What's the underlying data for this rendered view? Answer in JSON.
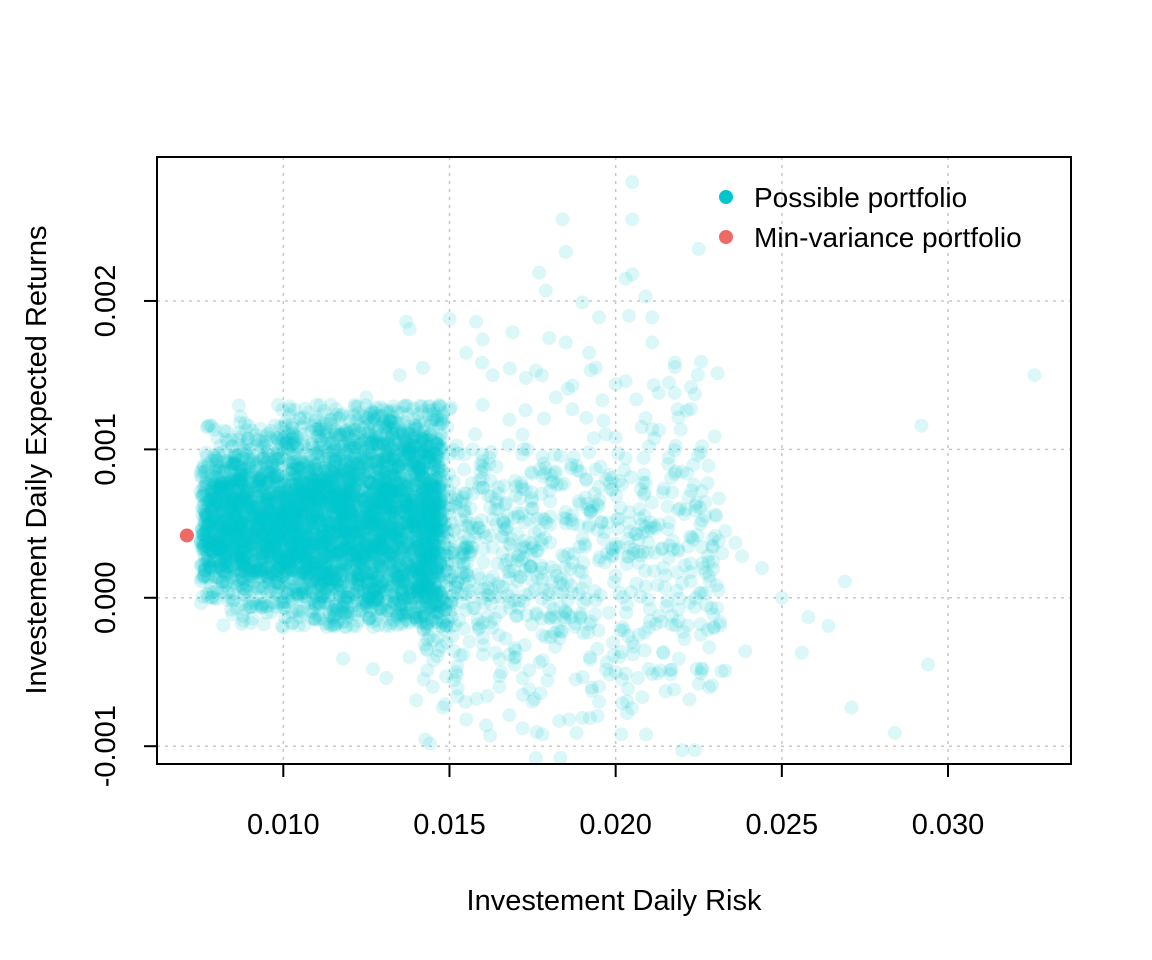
{
  "chart_data": {
    "type": "scatter",
    "title": "",
    "xlabel": "Investement Daily Risk",
    "ylabel": "Investement Daily Expected Returns",
    "xlim": [
      0.0062,
      0.0337
    ],
    "ylim": [
      -0.00112,
      0.00297
    ],
    "x_ticks": [
      0.01,
      0.015,
      0.02,
      0.025,
      0.03
    ],
    "x_tick_labels": [
      "0.010",
      "0.015",
      "0.020",
      "0.025",
      "0.030"
    ],
    "y_ticks": [
      -0.001,
      0.0,
      0.001,
      0.002
    ],
    "y_tick_labels": [
      "-0.001",
      "0.000",
      "0.001",
      "0.002"
    ],
    "grid": true,
    "legend_position": "top-right",
    "series": [
      {
        "name": "Possible portfolio",
        "color": "#00C5CD",
        "opacity": 0.14,
        "dense_core": {
          "x_range": [
            0.0075,
            0.0148
          ],
          "y_range": [
            -0.0002,
            0.0013
          ],
          "center": [
            0.0115,
            0.0005
          ]
        },
        "points": [
          [
            0.0205,
            0.0028
          ],
          [
            0.0184,
            0.00255
          ],
          [
            0.0205,
            0.00255
          ],
          [
            0.0185,
            0.00233
          ],
          [
            0.0225,
            0.00235
          ],
          [
            0.0177,
            0.00219
          ],
          [
            0.0203,
            0.00215
          ],
          [
            0.0205,
            0.00218
          ],
          [
            0.0179,
            0.00207
          ],
          [
            0.0209,
            0.00203
          ],
          [
            0.019,
            0.00199
          ],
          [
            0.0195,
            0.00189
          ],
          [
            0.0211,
            0.00189
          ],
          [
            0.0204,
            0.0019
          ],
          [
            0.0158,
            0.00186
          ],
          [
            0.0137,
            0.00186
          ],
          [
            0.015,
            0.00188
          ],
          [
            0.0138,
            0.00181
          ],
          [
            0.0169,
            0.00179
          ],
          [
            0.016,
            0.00174
          ],
          [
            0.0185,
            0.00172
          ],
          [
            0.0211,
            0.00172
          ],
          [
            0.018,
            0.00175
          ],
          [
            0.0192,
            0.00165
          ],
          [
            0.0194,
            0.00155
          ],
          [
            0.0176,
            0.00153
          ],
          [
            0.0173,
            0.00148
          ],
          [
            0.0216,
            0.00145
          ],
          [
            0.0203,
            0.00146
          ],
          [
            0.0187,
            0.00143
          ],
          [
            0.0213,
            0.00138
          ],
          [
            0.0182,
            0.00135
          ],
          [
            0.0196,
            0.00133
          ],
          [
            0.0187,
            0.00127
          ],
          [
            0.0209,
            0.00121
          ],
          [
            0.0213,
            0.00113
          ],
          [
            0.02,
            0.00108
          ],
          [
            0.0226,
            0.00102
          ],
          [
            0.021,
            0.00102
          ],
          [
            0.0192,
            0.00098
          ],
          [
            0.0203,
            0.00094
          ],
          [
            0.022,
            0.00085
          ],
          [
            0.0217,
            0.00071
          ],
          [
            0.0224,
            0.00062
          ],
          [
            0.023,
            0.00056
          ],
          [
            0.0226,
            0.00052
          ],
          [
            0.0233,
            0.00045
          ],
          [
            0.0236,
            0.00037
          ],
          [
            0.0232,
            0.0003
          ],
          [
            0.0238,
            0.00028
          ],
          [
            0.0228,
            0.00024
          ],
          [
            0.0244,
            0.0002
          ],
          [
            0.0215,
            0.00015
          ],
          [
            0.022,
            0.0001
          ],
          [
            0.0231,
            5e-05
          ],
          [
            0.025,
            0.0
          ],
          [
            0.0258,
            -0.00013
          ],
          [
            0.0264,
            -0.00019
          ],
          [
            0.0256,
            -0.00037
          ],
          [
            0.0269,
            0.00011
          ],
          [
            0.0239,
            -0.00036
          ],
          [
            0.0233,
            -0.00049
          ],
          [
            0.0225,
            -0.00058
          ],
          [
            0.0229,
            -0.00059
          ],
          [
            0.0219,
            -0.00041
          ],
          [
            0.0215,
            -0.00063
          ],
          [
            0.0208,
            -0.00067
          ],
          [
            0.0202,
            -0.00071
          ],
          [
            0.02,
            -0.0005
          ],
          [
            0.0195,
            -0.0007
          ],
          [
            0.0186,
            -0.00082
          ],
          [
            0.019,
            -0.00081
          ],
          [
            0.0183,
            -0.00083
          ],
          [
            0.0178,
            -0.00092
          ],
          [
            0.0176,
            -0.00108
          ],
          [
            0.0172,
            -0.00088
          ],
          [
            0.0168,
            -0.00079
          ],
          [
            0.0161,
            -0.00086
          ],
          [
            0.0155,
            -0.00082
          ],
          [
            0.0148,
            -0.00074
          ],
          [
            0.014,
            -0.00069
          ],
          [
            0.0131,
            -0.00054
          ],
          [
            0.0127,
            -0.00048
          ],
          [
            0.0118,
            -0.00041
          ],
          [
            0.0271,
            -0.00074
          ],
          [
            0.0284,
            -0.00091
          ],
          [
            0.0294,
            -0.00045
          ],
          [
            0.0292,
            0.00116
          ],
          [
            0.0326,
            0.0015
          ],
          [
            0.0163,
            0.0015
          ],
          [
            0.0168,
            0.0012
          ],
          [
            0.0172,
            0.0011
          ],
          [
            0.0178,
            0.00095
          ],
          [
            0.0182,
            0.00085
          ],
          [
            0.017,
            0.00075
          ],
          [
            0.0175,
            0.0006
          ],
          [
            0.0185,
            0.0005
          ],
          [
            0.019,
            0.0004
          ],
          [
            0.0195,
            0.00025
          ],
          [
            0.02,
            0.00015
          ],
          [
            0.018,
            5e-05
          ],
          [
            0.0185,
            -0.0001
          ],
          [
            0.0178,
            -0.00025
          ],
          [
            0.017,
            -0.0004
          ],
          [
            0.0165,
            -0.0006
          ],
          [
            0.0175,
            -0.0007
          ],
          [
            0.0188,
            -0.00055
          ],
          [
            0.0205,
            -0.0003
          ],
          [
            0.021,
            -0.0002
          ],
          [
            0.0198,
            -0.0001
          ],
          [
            0.016,
            0.0013
          ],
          [
            0.0155,
            0.00165
          ],
          [
            0.0157,
            0.001
          ],
          [
            0.0162,
            0.0009
          ],
          [
            0.0166,
            0.0003
          ],
          [
            0.0159,
            -0.0002
          ],
          [
            0.0152,
            -0.0005
          ],
          [
            0.0145,
            -0.0006
          ],
          [
            0.0138,
            -0.0004
          ],
          [
            0.01,
            -0.0002
          ],
          [
            0.0095,
            -0.0001
          ],
          [
            0.0083,
            0.0001
          ],
          [
            0.0078,
            0.0002
          ],
          [
            0.0076,
            0.00035
          ],
          [
            0.0077,
            0.00065
          ],
          [
            0.0082,
            0.00085
          ],
          [
            0.009,
            0.001
          ],
          [
            0.01,
            0.00115
          ],
          [
            0.011,
            0.0013
          ],
          [
            0.0125,
            0.00135
          ],
          [
            0.0135,
            0.0015
          ],
          [
            0.0142,
            0.00155
          ]
        ]
      },
      {
        "name": "Min-variance portfolio",
        "color": "#EE6A64",
        "opacity": 1,
        "points": [
          [
            0.0071,
            0.00042
          ]
        ]
      }
    ]
  }
}
